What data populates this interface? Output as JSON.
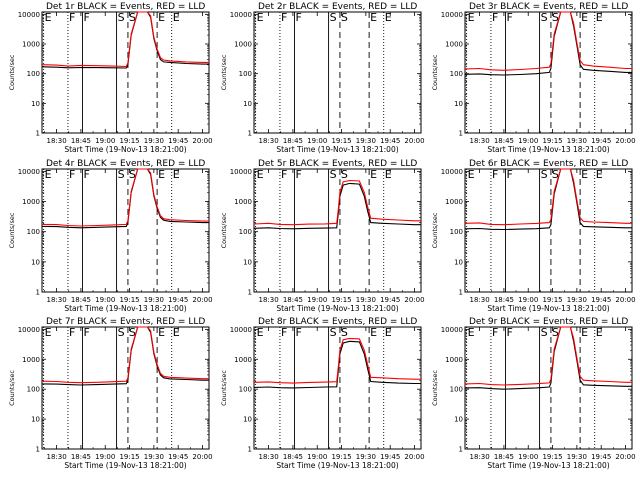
{
  "chart_data": {
    "type": "line",
    "ylabel": "Counts/sec",
    "xlabel": "Start Time (19-Nov-13 18:21:00)",
    "x_ticks": [
      "18:30",
      "18:45",
      "19:00",
      "19:15",
      "19:30",
      "19:45",
      "20:00"
    ],
    "x_tick_minutes": [
      30,
      45,
      60,
      75,
      90,
      105,
      120
    ],
    "xlim_minutes": [
      21,
      124
    ],
    "y_scale": "log",
    "ylim": [
      1,
      12000
    ],
    "y_ticks": [
      "1",
      "10",
      "100",
      "1000",
      "10000"
    ],
    "y_tick_values": [
      1,
      10,
      100,
      1000,
      10000
    ],
    "colors": {
      "events": "#000000",
      "lld": "#ff0000"
    },
    "interval_markers": [
      {
        "label": "E",
        "x": 22,
        "style": "dotted"
      },
      {
        "label": "F",
        "x": 37,
        "style": "dotted"
      },
      {
        "label": "F",
        "x": 46,
        "style": "solid"
      },
      {
        "label": "S",
        "x": 67,
        "style": "solid"
      },
      {
        "label": "S",
        "x": 74,
        "style": "dashed"
      },
      {
        "label": "E",
        "x": 92,
        "style": "dashed"
      },
      {
        "label": "E",
        "x": 101,
        "style": "dotted"
      }
    ],
    "panels": [
      {
        "title": "Det 1r BLACK = Events, RED = LLD",
        "series": [
          {
            "name": "Events",
            "x": [
              21,
              30,
              37,
              45,
              55,
              65,
              73,
              74,
              76,
              80,
              83,
              86,
              88,
              90,
              92,
              94,
              96,
              100,
              110,
              120,
              124
            ],
            "values": [
              170,
              165,
              158,
              162,
              160,
              158,
              155,
              200,
              2000,
              12000,
              12000,
              12000,
              8000,
              1500,
              600,
              300,
              250,
              240,
              220,
              210,
              210
            ]
          },
          {
            "name": "LLD",
            "x": [
              21,
              30,
              37,
              45,
              55,
              65,
              73,
              74,
              76,
              80,
              83,
              86,
              88,
              90,
              92,
              94,
              96,
              100,
              110,
              120,
              124
            ],
            "values": [
              200,
              195,
              180,
              190,
              185,
              180,
              175,
              230,
              2200,
              12000,
              12000,
              12000,
              9000,
              1700,
              680,
              350,
              290,
              270,
              250,
              240,
              240
            ]
          }
        ]
      },
      {
        "title": "Det 2r BLACK = Events, RED = LLD",
        "series": []
      },
      {
        "title": "Det 3r BLACK = Events, RED = LLD",
        "series": [
          {
            "name": "Events",
            "x": [
              21,
              30,
              37,
              45,
              55,
              65,
              73,
              74,
              76,
              80,
              86,
              88,
              90,
              92,
              94,
              100,
              110,
              120,
              124
            ],
            "values": [
              95,
              98,
              92,
              90,
              94,
              100,
              110,
              150,
              1800,
              12000,
              12000,
              4000,
              900,
              200,
              140,
              130,
              120,
              110,
              110
            ]
          },
          {
            "name": "LLD",
            "x": [
              21,
              30,
              37,
              45,
              55,
              65,
              73,
              74,
              76,
              80,
              86,
              88,
              90,
              92,
              94,
              100,
              110,
              120,
              124
            ],
            "values": [
              145,
              150,
              135,
              130,
              138,
              150,
              165,
              220,
              2200,
              12000,
              12000,
              5000,
              1100,
              280,
              200,
              180,
              165,
              150,
              150
            ]
          }
        ]
      },
      {
        "title": "Det 4r BLACK = Events, RED = LLD",
        "series": [
          {
            "name": "Events",
            "x": [
              21,
              30,
              37,
              45,
              55,
              65,
              73,
              74,
              76,
              80,
              83,
              86,
              88,
              90,
              92,
              94,
              96,
              100,
              110,
              120,
              124
            ],
            "values": [
              150,
              148,
              140,
              135,
              140,
              145,
              150,
              200,
              2000,
              12000,
              12000,
              12000,
              8000,
              1500,
              600,
              300,
              240,
              220,
              210,
              200,
              200
            ]
          },
          {
            "name": "LLD",
            "x": [
              21,
              30,
              37,
              45,
              55,
              65,
              73,
              74,
              76,
              80,
              83,
              86,
              88,
              90,
              92,
              94,
              96,
              100,
              110,
              120,
              124
            ],
            "values": [
              175,
              172,
              160,
              155,
              160,
              168,
              175,
              230,
              2200,
              12000,
              12000,
              12000,
              9000,
              1700,
              680,
              340,
              270,
              250,
              235,
              225,
              225
            ]
          }
        ]
      },
      {
        "title": "Det 5r BLACK = Events, RED = LLD",
        "series": [
          {
            "name": "Events",
            "x": [
              21,
              30,
              37,
              45,
              55,
              65,
              72,
              73,
              74,
              76,
              80,
              86,
              89,
              91,
              93,
              100,
              110,
              120,
              124
            ],
            "values": [
              130,
              135,
              128,
              125,
              130,
              132,
              135,
              400,
              1500,
              3500,
              4000,
              3800,
              1500,
              500,
              200,
              190,
              180,
              170,
              170
            ]
          },
          {
            "name": "LLD",
            "x": [
              21,
              30,
              37,
              45,
              55,
              65,
              72,
              73,
              74,
              76,
              80,
              86,
              89,
              91,
              93,
              100,
              110,
              120,
              124
            ],
            "values": [
              180,
              190,
              175,
              170,
              178,
              182,
              190,
              550,
              2000,
              4500,
              5000,
              4800,
              2000,
              700,
              280,
              260,
              245,
              230,
              230
            ]
          }
        ]
      },
      {
        "title": "Det 6r BLACK = Events, RED = LLD",
        "series": [
          {
            "name": "Events",
            "x": [
              21,
              30,
              37,
              45,
              55,
              65,
              73,
              74,
              76,
              80,
              86,
              88,
              90,
              92,
              94,
              100,
              110,
              120,
              124
            ],
            "values": [
              125,
              128,
              120,
              118,
              122,
              126,
              135,
              170,
              1800,
              12000,
              12000,
              4000,
              900,
              200,
              150,
              145,
              140,
              135,
              135
            ]
          },
          {
            "name": "LLD",
            "x": [
              21,
              30,
              37,
              45,
              55,
              65,
              73,
              74,
              76,
              80,
              86,
              88,
              90,
              92,
              94,
              100,
              110,
              120,
              124
            ],
            "values": [
              190,
              195,
              175,
              170,
              180,
              188,
              200,
              250,
              2200,
              12000,
              12000,
              5000,
              1100,
              290,
              220,
              210,
              200,
              190,
              190
            ]
          }
        ]
      },
      {
        "title": "Det 7r BLACK = Events, RED = LLD",
        "series": [
          {
            "name": "Events",
            "x": [
              21,
              30,
              37,
              45,
              55,
              65,
              73,
              74,
              76,
              80,
              83,
              86,
              88,
              90,
              92,
              94,
              96,
              100,
              110,
              120,
              124
            ],
            "values": [
              150,
              148,
              142,
              138,
              142,
              148,
              152,
              200,
              2000,
              12000,
              12000,
              12000,
              8000,
              1500,
              600,
              300,
              240,
              220,
              210,
              200,
              200
            ]
          },
          {
            "name": "LLD",
            "x": [
              21,
              30,
              37,
              45,
              55,
              65,
              73,
              74,
              76,
              80,
              83,
              86,
              88,
              90,
              92,
              94,
              96,
              100,
              110,
              120,
              124
            ],
            "values": [
              185,
              180,
              170,
              165,
              170,
              178,
              185,
              240,
              2200,
              12000,
              12000,
              12000,
              9000,
              1700,
              680,
              340,
              270,
              250,
              235,
              225,
              225
            ]
          }
        ]
      },
      {
        "title": "Det 8r BLACK = Events, RED = LLD",
        "series": [
          {
            "name": "Events",
            "x": [
              21,
              30,
              37,
              45,
              55,
              65,
              72,
              73,
              74,
              76,
              80,
              86,
              89,
              91,
              93,
              100,
              110,
              120,
              124
            ],
            "values": [
              115,
              118,
              112,
              110,
              114,
              118,
              120,
              400,
              1500,
              3500,
              4000,
              3800,
              1500,
              500,
              180,
              170,
              160,
              155,
              155
            ]
          },
          {
            "name": "LLD",
            "x": [
              21,
              30,
              37,
              45,
              55,
              65,
              72,
              73,
              74,
              76,
              80,
              86,
              89,
              91,
              93,
              100,
              110,
              120,
              124
            ],
            "values": [
              170,
              175,
              165,
              160,
              168,
              172,
              178,
              550,
              2000,
              4500,
              5000,
              4800,
              2000,
              700,
              250,
              240,
              225,
              215,
              215
            ]
          }
        ]
      },
      {
        "title": "Det 9r BLACK = Events, RED = LLD",
        "series": [
          {
            "name": "Events",
            "x": [
              21,
              30,
              37,
              45,
              55,
              65,
              73,
              74,
              76,
              80,
              86,
              88,
              90,
              92,
              94,
              100,
              110,
              120,
              124
            ],
            "values": [
              110,
              112,
              105,
              100,
              105,
              110,
              118,
              160,
              1800,
              12000,
              12000,
              4000,
              900,
              200,
              140,
              135,
              130,
              125,
              125
            ]
          },
          {
            "name": "LLD",
            "x": [
              21,
              30,
              37,
              45,
              55,
              65,
              73,
              74,
              76,
              80,
              86,
              88,
              90,
              92,
              94,
              100,
              110,
              120,
              124
            ],
            "values": [
              150,
              155,
              142,
              138,
              145,
              152,
              162,
              215,
              2200,
              12000,
              12000,
              5000,
              1100,
              270,
              200,
              190,
              180,
              170,
              170
            ]
          }
        ]
      }
    ]
  }
}
